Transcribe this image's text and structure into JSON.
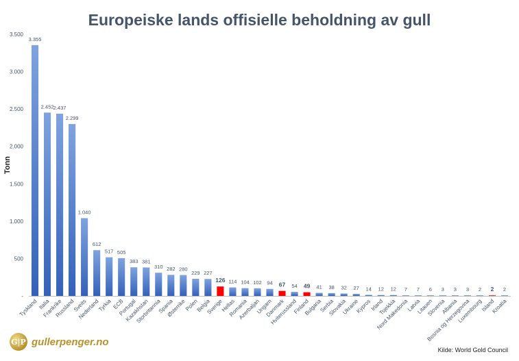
{
  "chart_data": {
    "type": "bar",
    "title": "Europeiske lands offisielle beholdning av gull",
    "ylabel": "Tonn",
    "ylim": [
      0,
      3500
    ],
    "yticks": [
      "-",
      "500",
      "1.000",
      "1.500",
      "2.000",
      "2.500",
      "3.000",
      "3.500"
    ],
    "ytick_values": [
      0,
      500,
      1000,
      1500,
      2000,
      2500,
      3000,
      3500
    ],
    "grid": false,
    "categories": [
      "Tyskland",
      "Italia",
      "Frankrike",
      "Russland",
      "Sveits",
      "Nederland",
      "Tyrkia",
      "ECB",
      "Portugal",
      "Kazakhstan",
      "Storbritannia",
      "Spania",
      "Østerrike",
      "Polen",
      "Belgia",
      "Sverige",
      "Hellas",
      "Romania",
      "Azerbaijan",
      "Ungarn",
      "Danmark",
      "Hviterussland",
      "Finland",
      "Bulgaria",
      "Serbia",
      "Slovakia",
      "Ukraine",
      "Kypros",
      "Irland",
      "Tsjekkia",
      "Nord Makedonia",
      "Latvia",
      "Litauen",
      "Slovenia",
      "Albania",
      "Bosnia og Herzegovina",
      "Luxembourg",
      "Island",
      "Kroatia"
    ],
    "values": [
      3355,
      2452,
      2437,
      2299,
      1040,
      612,
      517,
      505,
      383,
      381,
      310,
      282,
      280,
      229,
      227,
      126,
      114,
      104,
      102,
      94,
      67,
      54,
      49,
      41,
      38,
      32,
      27,
      14,
      12,
      12,
      7,
      7,
      6,
      3,
      3,
      3,
      2,
      2,
      2
    ],
    "value_labels": [
      "3.355",
      "2.452",
      "2.437",
      "2.299",
      "1.040",
      "612",
      "517",
      "505",
      "383",
      "381",
      "310",
      "282",
      "280",
      "229",
      "227",
      "126",
      "114",
      "104",
      "102",
      "94",
      "67",
      "54",
      "49",
      "41",
      "38",
      "32",
      "27",
      "14",
      "12",
      "12",
      "7",
      "7",
      "6",
      "3",
      "3",
      "3",
      "2",
      "2",
      "2"
    ],
    "highlighted": [
      "Sverige",
      "Danmark",
      "Finland",
      "Island"
    ],
    "colors": {
      "bar": "#4472c4",
      "bar_light": "#7fa3df",
      "highlight": "#ff0000",
      "axis": "#bfbfbf",
      "title": "#44546a",
      "text": "#44546a"
    }
  },
  "branding": {
    "logo_mark": "G|P",
    "logo_text": "gullerpenger.no"
  },
  "source": "Kilde: World Gold Council"
}
